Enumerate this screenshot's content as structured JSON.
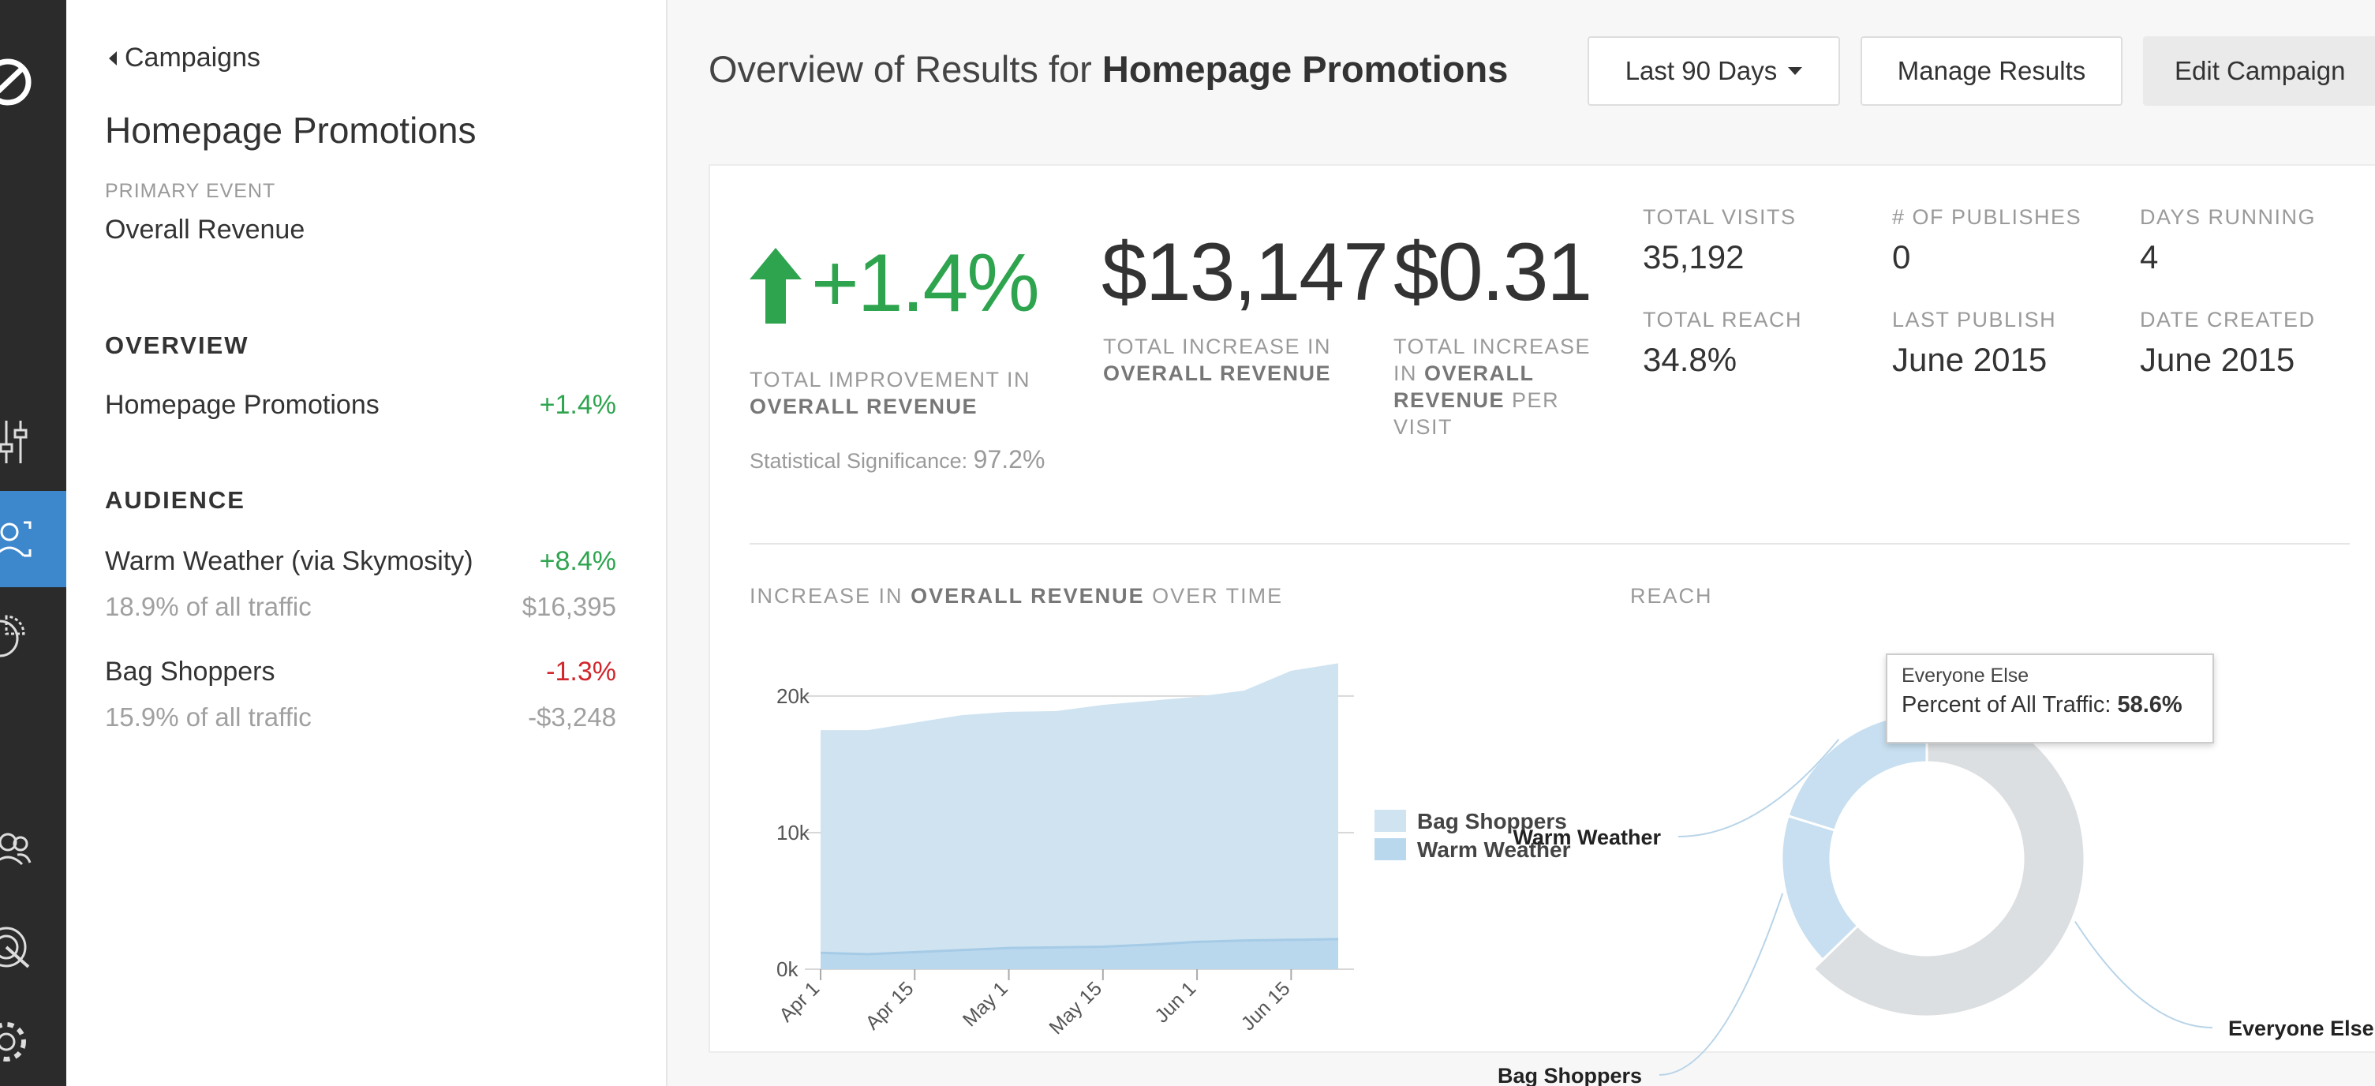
{
  "sidebar": {
    "back_label": "Campaigns",
    "campaign_title": "Homepage Promotions",
    "primary_event_label": "PRIMARY EVENT",
    "primary_event_value": "Overall Revenue",
    "overview_heading": "OVERVIEW",
    "overview_item": {
      "name": "Homepage Promotions",
      "value": "+1.4%"
    },
    "audience_heading": "AUDIENCE",
    "audiences": [
      {
        "name": "Warm Weather (via Skymosity)",
        "change": "+8.4%",
        "traffic": "18.9% of all traffic",
        "amount": "$16,395"
      },
      {
        "name": "Bag Shoppers",
        "change": "-1.3%",
        "traffic": "15.9% of all traffic",
        "amount": "-$3,248"
      }
    ]
  },
  "header": {
    "title_prefix": "Overview of Results for",
    "title_bold": "Homepage Promotions",
    "date_range_label": "Last 90 Days",
    "manage_label": "Manage Results",
    "edit_label": "Edit Campaign"
  },
  "kpis": {
    "improvement": "+1.4%",
    "improvement_label_1": "TOTAL IMPROVEMENT IN",
    "improvement_label_2": "OVERALL REVENUE",
    "significance_label": "Statistical Significance:",
    "significance_value": "97.2%",
    "total_increase": "$13,147",
    "total_increase_label_1": "TOTAL INCREASE IN",
    "total_increase_label_2": "OVERALL REVENUE",
    "per_visit": "$0.31",
    "per_visit_label_1": "TOTAL INCREASE",
    "per_visit_label_2": "IN",
    "per_visit_label_3": "OVERALL",
    "per_visit_label_4": "REVENUE",
    "per_visit_label_5": "PER",
    "per_visit_label_6": "VISIT"
  },
  "stats": [
    {
      "label": "TOTAL VISITS",
      "value": "35,192"
    },
    {
      "label": "# OF PUBLISHES",
      "value": "0"
    },
    {
      "label": "DAYS RUNNING",
      "value": "4"
    },
    {
      "label": "TOTAL REACH",
      "value": "34.8%"
    },
    {
      "label": "LAST PUBLISH",
      "value": "June 2015"
    },
    {
      "label": "DATE CREATED",
      "value": "June 2015"
    }
  ],
  "revenue_chart": {
    "title_1": "INCREASE IN",
    "title_2": "OVERALL REVENUE",
    "title_3": "OVER TIME"
  },
  "reach_chart": {
    "title": "REACH",
    "tooltip_name": "Everyone Else",
    "tooltip_label": "Percent of All Traffic:",
    "tooltip_value": "58.6%"
  },
  "colors": {
    "positive": "#2ea44f",
    "negative": "#d0262b",
    "accent": "#3d87cc",
    "area_bag": "#cfe3f1",
    "area_warm": "#b9d8ee",
    "donut_else": "#dcdfe1"
  },
  "chart_data": [
    {
      "type": "area",
      "x": [
        "Apr 1",
        "Apr 8",
        "Apr 15",
        "Apr 22",
        "May 1",
        "May 8",
        "May 15",
        "May 22",
        "Jun 1",
        "Jun 8",
        "Jun 15",
        "Jun 22"
      ],
      "x_ticks": [
        "Apr 1",
        "Apr 15",
        "May 1",
        "May 15",
        "Jun 1",
        "Jun 15"
      ],
      "y_ticks": [
        "0k",
        "10k",
        "20k"
      ],
      "ylim": [
        0,
        23000
      ],
      "stacked": true,
      "series": [
        {
          "name": "Warm Weather",
          "values": [
            1200,
            1100,
            1250,
            1400,
            1550,
            1600,
            1650,
            1800,
            2000,
            2100,
            2150,
            2200
          ]
        },
        {
          "name": "Bag Shoppers",
          "values": [
            16300,
            16400,
            16800,
            17200,
            17300,
            17300,
            17700,
            17850,
            17950,
            18300,
            19700,
            20200
          ]
        }
      ],
      "legend": "right"
    },
    {
      "type": "pie",
      "style": "donut",
      "labels": [
        "Everyone Else",
        "Bag Shoppers",
        "Warm Weather"
      ],
      "values": [
        58.6,
        15.9,
        18.9
      ],
      "highlighted": "Everyone Else"
    }
  ]
}
